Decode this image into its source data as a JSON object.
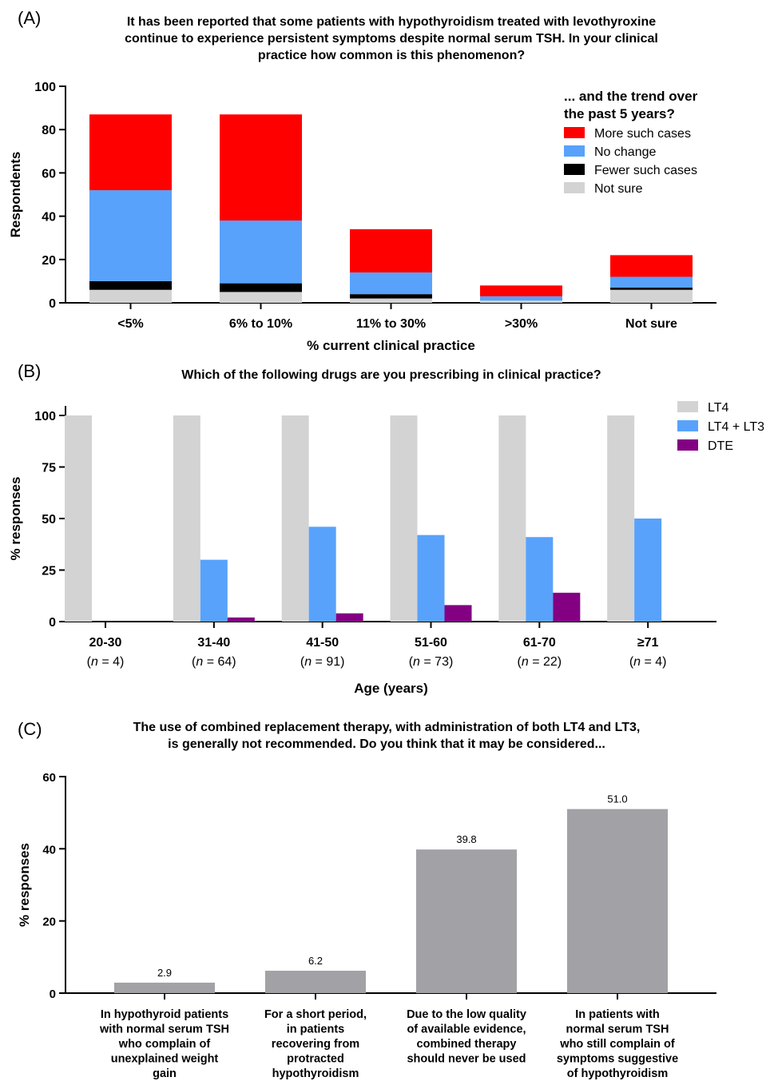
{
  "chart_data": [
    {
      "type": "bar",
      "stacked": true,
      "panel_label": "(A)",
      "title": [
        "It has been reported that some patients with hypothyroidism treated with levothyroxine",
        "continue to experience persistent symptoms despite normal serum TSH. In your clinical",
        "practice how common is this phenomenon?"
      ],
      "xlabel": "% current clinical practice",
      "ylabel": "Respondents",
      "ylim": [
        0,
        100
      ],
      "yticks": [
        0,
        20,
        40,
        60,
        80,
        100
      ],
      "categories": [
        "<5%",
        "6% to 10%",
        "11% to 30%",
        ">30%",
        "Not sure"
      ],
      "legend_title": [
        "... and the trend over",
        "the past 5 years?"
      ],
      "legend_position": "top-right",
      "series": [
        {
          "name": "Not sure",
          "color": "#d3d3d3",
          "values": [
            6,
            5,
            2,
            1,
            6
          ]
        },
        {
          "name": "Fewer such cases",
          "color": "#000000",
          "values": [
            4,
            4,
            2,
            0,
            1
          ]
        },
        {
          "name": "No change",
          "color": "#58a2fb",
          "values": [
            42,
            29,
            10,
            2,
            5
          ]
        },
        {
          "name": "More such cases",
          "color": "#ff0000",
          "values": [
            35,
            49,
            20,
            5,
            10
          ]
        }
      ]
    },
    {
      "type": "bar",
      "panel_label": "(B)",
      "title": [
        "Which of the following drugs are you prescribing in clinical practice?"
      ],
      "xlabel": "Age (years)",
      "ylabel": "% responses",
      "ylim": [
        0,
        100
      ],
      "yticks": [
        0,
        25,
        50,
        75,
        100
      ],
      "categories": [
        "20-30",
        "31-40",
        "41-50",
        "51-60",
        "61-70",
        "≥71"
      ],
      "category_n": [
        "4",
        "64",
        "91",
        "73",
        "22",
        "4"
      ],
      "legend_position": "top-right",
      "series": [
        {
          "name": "LT4",
          "color": "#d3d3d3",
          "values": [
            100,
            100,
            100,
            100,
            100,
            100
          ]
        },
        {
          "name": "LT4 + LT3",
          "color": "#58a2fb",
          "values": [
            0,
            30,
            46,
            42,
            41,
            50
          ]
        },
        {
          "name": "DTE",
          "color": "#830083",
          "values": [
            0,
            2,
            4,
            8,
            14,
            0
          ]
        }
      ]
    },
    {
      "type": "bar",
      "panel_label": "(C)",
      "title": [
        "The use of combined replacement therapy, with administration of both LT4 and LT3,",
        "is generally not recommended.  Do you think that it may be considered..."
      ],
      "xlabel": "",
      "ylabel": "% responses",
      "ylim": [
        0,
        60
      ],
      "yticks": [
        0,
        20,
        40,
        60
      ],
      "bar_color": "#a1a1a6",
      "categories": [
        [
          "In hypothyroid patients",
          "with normal serum TSH",
          "who complain of",
          "unexplained weight",
          "gain"
        ],
        [
          "For a short period,",
          "in patients",
          "recovering from",
          "protracted",
          "hypothyroidism"
        ],
        [
          "Due to the low quality",
          "of available evidence,",
          "combined therapy",
          "should never be used"
        ],
        [
          "In patients with",
          "normal serum TSH",
          "who still complain of",
          "symptoms suggestive",
          "of hypothyroidism"
        ]
      ],
      "values": [
        2.9,
        6.2,
        39.8,
        51.0
      ],
      "data_labels": [
        "2.9",
        "6.2",
        "39.8",
        "51.0"
      ]
    }
  ]
}
